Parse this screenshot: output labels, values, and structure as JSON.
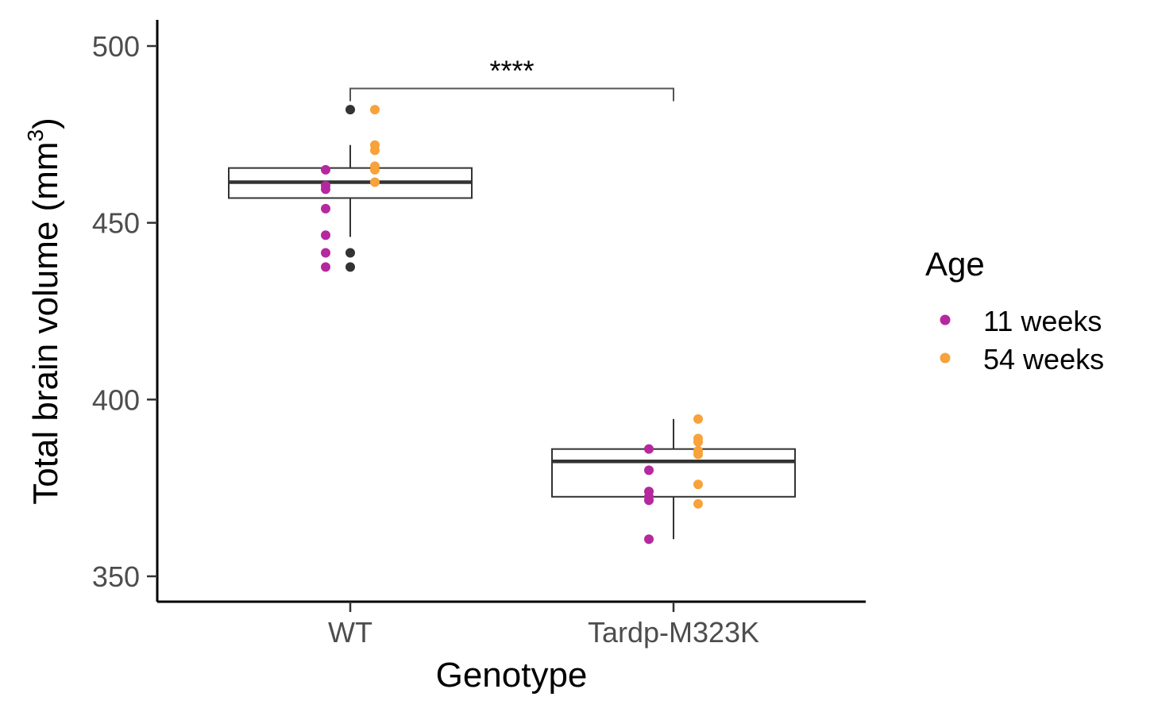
{
  "chart_data": {
    "type": "box",
    "title": "",
    "xlabel": "Genotype",
    "ylabel_main": "Total brain volume (mm",
    "ylabel_sup": "3",
    "ylabel_close": ")",
    "ylim": [
      343,
      502
    ],
    "yticks": [
      350,
      400,
      450,
      500
    ],
    "categories": [
      "WT",
      "Tardp-M323K"
    ],
    "boxes": [
      {
        "category": "WT",
        "q1": 457,
        "median": 461.5,
        "q3": 465.5,
        "whisker_low": 446,
        "whisker_high": 472,
        "outliers": [
          482,
          441.5,
          437.5
        ]
      },
      {
        "category": "Tardp-M323K",
        "q1": 372.5,
        "median": 382.5,
        "q3": 386,
        "whisker_low": 360.5,
        "whisker_high": 394.5,
        "outliers": []
      }
    ],
    "series": [
      {
        "name": "11 weeks",
        "color": "#b5289e",
        "points": [
          {
            "category": "WT",
            "values": [
              465,
              460.5,
              459.5,
              454,
              446.5,
              441.5,
              437.5
            ]
          },
          {
            "category": "Tardp-M323K",
            "values": [
              386,
              380,
              374,
              372.5,
              371.5,
              360.5
            ]
          }
        ]
      },
      {
        "name": "54 weeks",
        "color": "#f7a23a",
        "points": [
          {
            "category": "WT",
            "values": [
              482,
              472,
              470.5,
              466,
              465,
              461.5
            ]
          },
          {
            "category": "Tardp-M323K",
            "values": [
              394.5,
              389,
              388,
              385.5,
              384.5,
              376,
              370.5
            ]
          }
        ]
      }
    ],
    "legend": {
      "title": "Age",
      "position": "right"
    },
    "significance": {
      "label": "****",
      "from": "WT",
      "to": "Tardp-M323K",
      "y": 488
    }
  }
}
